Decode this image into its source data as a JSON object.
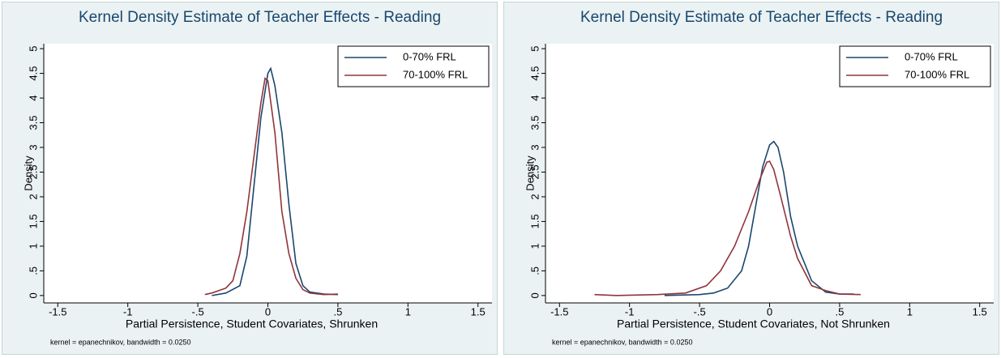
{
  "chart_data": [
    {
      "type": "line",
      "title": "Kernel Density Estimate of Teacher Effects - Reading",
      "x_label": "Partial Persistence, Student Covariates, Shrunken",
      "y_label": "Density",
      "note": "kernel = epanechnikov, bandwidth = 0.0250",
      "xlim": [
        -1.6,
        1.6
      ],
      "ylim": [
        -0.15,
        5.1
      ],
      "xticks": [
        -1.5,
        -1,
        {
          "value": -0.5,
          "label": "-.5"
        },
        0,
        {
          "value": 0.5,
          "label": ".5"
        },
        1,
        1.5
      ],
      "yticks": [
        0,
        {
          "value": 0.5,
          "label": ".5"
        },
        1,
        1.5,
        2,
        2.5,
        3,
        3.5,
        4,
        4.5,
        5
      ],
      "grid": false,
      "legend": "top-right",
      "series": [
        {
          "name": "0-70% FRL",
          "color": "#1a476f",
          "x": [
            -0.4,
            -0.3,
            -0.2,
            -0.15,
            -0.1,
            -0.05,
            0,
            0.02,
            0.05,
            0.1,
            0.15,
            0.2,
            0.25,
            0.3,
            0.4,
            0.5
          ],
          "values": [
            0.0,
            0.05,
            0.2,
            0.8,
            2.2,
            3.6,
            4.5,
            4.6,
            4.25,
            3.3,
            1.85,
            0.65,
            0.2,
            0.07,
            0.03,
            0.02
          ]
        },
        {
          "name": "70-100% FRL",
          "color": "#90353b",
          "x": [
            -0.45,
            -0.4,
            -0.3,
            -0.25,
            -0.2,
            -0.15,
            -0.1,
            -0.05,
            -0.02,
            0,
            0.05,
            0.1,
            0.15,
            0.2,
            0.25,
            0.3,
            0.4,
            0.5
          ],
          "values": [
            0.02,
            0.05,
            0.15,
            0.3,
            0.85,
            1.7,
            2.8,
            3.9,
            4.4,
            4.35,
            3.3,
            1.7,
            0.85,
            0.35,
            0.12,
            0.05,
            0.02,
            0.03
          ]
        }
      ]
    },
    {
      "type": "line",
      "title": "Kernel Density Estimate of Teacher Effects - Reading",
      "x_label": "Partial Persistence, Student Covariates, Not Shrunken",
      "y_label": "Density",
      "note": "kernel = epanechnikov, bandwidth = 0.0250",
      "xlim": [
        -1.6,
        1.6
      ],
      "ylim": [
        -0.15,
        5.1
      ],
      "xticks": [
        -1.5,
        -1,
        {
          "value": -0.5,
          "label": "-.5"
        },
        0,
        {
          "value": 0.5,
          "label": ".5"
        },
        1,
        1.5
      ],
      "yticks": [
        0,
        {
          "value": 0.5,
          "label": ".5"
        },
        1,
        1.5,
        2,
        2.5,
        3,
        3.5,
        4,
        4.5,
        5
      ],
      "grid": false,
      "legend": "top-right",
      "series": [
        {
          "name": "0-70% FRL",
          "color": "#1a476f",
          "x": [
            -0.75,
            -0.5,
            -0.4,
            -0.3,
            -0.2,
            -0.15,
            -0.1,
            -0.05,
            0,
            0.03,
            0.06,
            0.1,
            0.15,
            0.2,
            0.3,
            0.4,
            0.5,
            0.6
          ],
          "values": [
            0.0,
            0.02,
            0.05,
            0.15,
            0.5,
            1.0,
            1.8,
            2.6,
            3.05,
            3.12,
            3.0,
            2.5,
            1.6,
            1.0,
            0.3,
            0.07,
            0.03,
            0.03
          ]
        },
        {
          "name": "70-100% FRL",
          "color": "#90353b",
          "x": [
            -1.25,
            -1.1,
            -0.8,
            -0.6,
            -0.45,
            -0.35,
            -0.25,
            -0.15,
            -0.07,
            -0.02,
            0,
            0.03,
            0.08,
            0.15,
            0.2,
            0.3,
            0.4,
            0.5,
            0.65
          ],
          "values": [
            0.02,
            0.0,
            0.02,
            0.05,
            0.2,
            0.5,
            1.0,
            1.7,
            2.35,
            2.7,
            2.72,
            2.55,
            2.0,
            1.2,
            0.75,
            0.2,
            0.1,
            0.03,
            0.02
          ]
        }
      ]
    }
  ]
}
